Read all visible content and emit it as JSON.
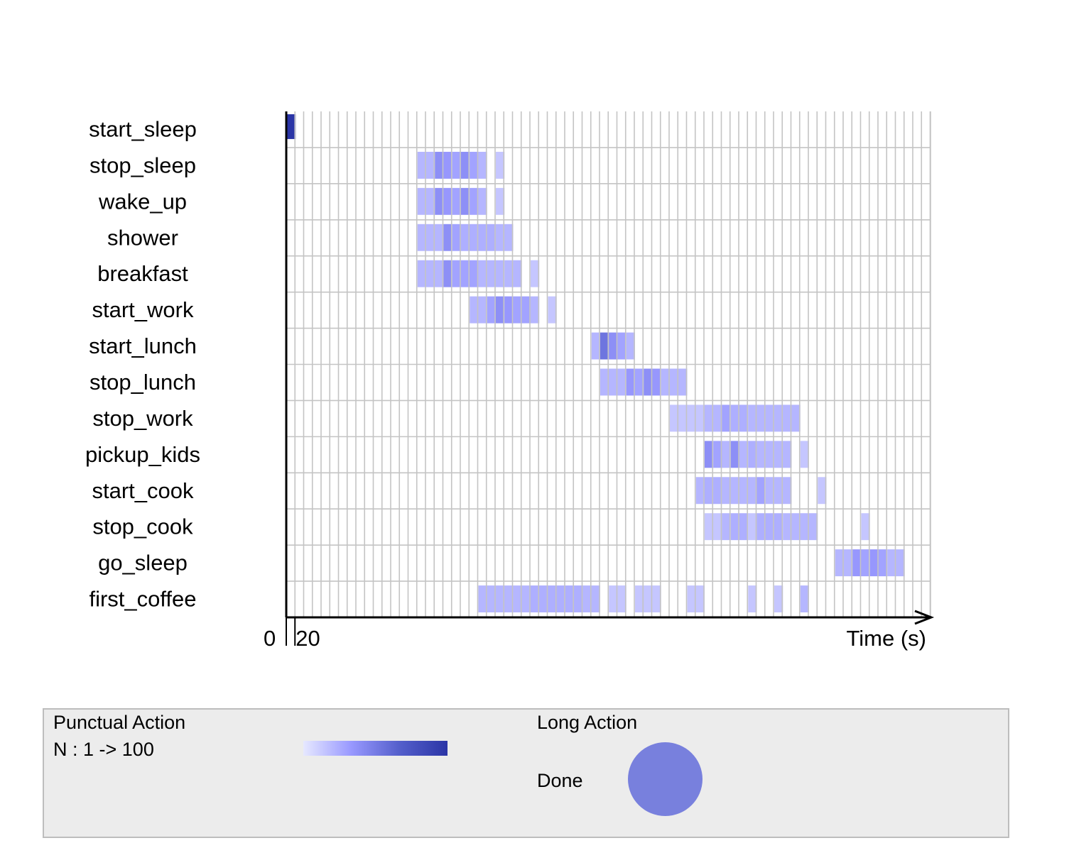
{
  "chart_data": {
    "type": "heatmap",
    "xlabel": "Time (s)",
    "x_ticks": [
      "0",
      "20"
    ],
    "grid": true,
    "rows": [
      "start_sleep",
      "stop_sleep",
      "wake_up",
      "shower",
      "breakfast",
      "start_work",
      "start_lunch",
      "stop_lunch",
      "stop_work",
      "pickup_kids",
      "start_cook",
      "stop_cook",
      "go_sleep",
      "first_coffee"
    ],
    "cells": [
      [
        [
          0,
          1,
          100
        ]
      ],
      [
        [
          15,
          2,
          22
        ],
        [
          17,
          1,
          40
        ],
        [
          18,
          1,
          35
        ],
        [
          19,
          1,
          30
        ],
        [
          20,
          1,
          40
        ],
        [
          21,
          1,
          30
        ],
        [
          22,
          1,
          22
        ],
        [
          24,
          1,
          15
        ]
      ],
      [
        [
          15,
          2,
          22
        ],
        [
          17,
          1,
          40
        ],
        [
          18,
          1,
          35
        ],
        [
          19,
          1,
          30
        ],
        [
          20,
          1,
          40
        ],
        [
          21,
          1,
          30
        ],
        [
          22,
          1,
          22
        ],
        [
          24,
          1,
          15
        ]
      ],
      [
        [
          15,
          3,
          22
        ],
        [
          18,
          1,
          40
        ],
        [
          19,
          1,
          30
        ],
        [
          20,
          4,
          25
        ],
        [
          24,
          2,
          22
        ]
      ],
      [
        [
          15,
          3,
          22
        ],
        [
          18,
          1,
          40
        ],
        [
          19,
          3,
          30
        ],
        [
          22,
          3,
          22
        ],
        [
          25,
          2,
          22
        ],
        [
          28,
          1,
          15
        ]
      ],
      [
        [
          21,
          2,
          22
        ],
        [
          23,
          1,
          30
        ],
        [
          24,
          1,
          40
        ],
        [
          25,
          1,
          35
        ],
        [
          26,
          2,
          30
        ],
        [
          28,
          1,
          22
        ],
        [
          30,
          1,
          15
        ]
      ],
      [
        [
          35,
          1,
          22
        ],
        [
          36,
          1,
          55
        ],
        [
          37,
          1,
          40
        ],
        [
          38,
          1,
          30
        ],
        [
          39,
          1,
          22
        ]
      ],
      [
        [
          36,
          3,
          22
        ],
        [
          39,
          1,
          35
        ],
        [
          40,
          1,
          30
        ],
        [
          41,
          1,
          40
        ],
        [
          42,
          1,
          35
        ],
        [
          43,
          3,
          22
        ]
      ],
      [
        [
          44,
          4,
          15
        ],
        [
          48,
          2,
          22
        ],
        [
          50,
          1,
          30
        ],
        [
          51,
          2,
          25
        ],
        [
          53,
          6,
          22
        ]
      ],
      [
        [
          48,
          1,
          40
        ],
        [
          49,
          1,
          30
        ],
        [
          50,
          1,
          22
        ],
        [
          51,
          1,
          40
        ],
        [
          52,
          1,
          22
        ],
        [
          53,
          1,
          25
        ],
        [
          54,
          4,
          22
        ],
        [
          59,
          1,
          15
        ]
      ],
      [
        [
          47,
          1,
          22
        ],
        [
          48,
          2,
          25
        ],
        [
          50,
          4,
          22
        ],
        [
          54,
          1,
          30
        ],
        [
          55,
          3,
          22
        ],
        [
          61,
          1,
          15
        ]
      ],
      [
        [
          48,
          2,
          15
        ],
        [
          50,
          1,
          22
        ],
        [
          51,
          2,
          25
        ],
        [
          53,
          1,
          15
        ],
        [
          54,
          3,
          25
        ],
        [
          57,
          4,
          22
        ],
        [
          66,
          1,
          15
        ]
      ],
      [
        [
          63,
          2,
          22
        ],
        [
          65,
          1,
          35
        ],
        [
          66,
          1,
          30
        ],
        [
          67,
          1,
          35
        ],
        [
          68,
          1,
          30
        ],
        [
          69,
          2,
          22
        ]
      ],
      [
        [
          22,
          6,
          22
        ],
        [
          28,
          6,
          25
        ],
        [
          34,
          2,
          22
        ],
        [
          37,
          2,
          15
        ],
        [
          40,
          3,
          15
        ],
        [
          46,
          2,
          15
        ],
        [
          53,
          1,
          15
        ],
        [
          56,
          1,
          15
        ],
        [
          59,
          1,
          22
        ]
      ]
    ],
    "legend": {
      "punctual_title": "Punctual Action",
      "punctual_range": "N : 1 -> 100",
      "gradient_colors": [
        "#e6e8ff",
        "#9999ff",
        "#5560cc",
        "#2b35a6"
      ],
      "long_title": "Long Action",
      "long_done_label": "Done",
      "done_color": "#7880dd"
    }
  }
}
